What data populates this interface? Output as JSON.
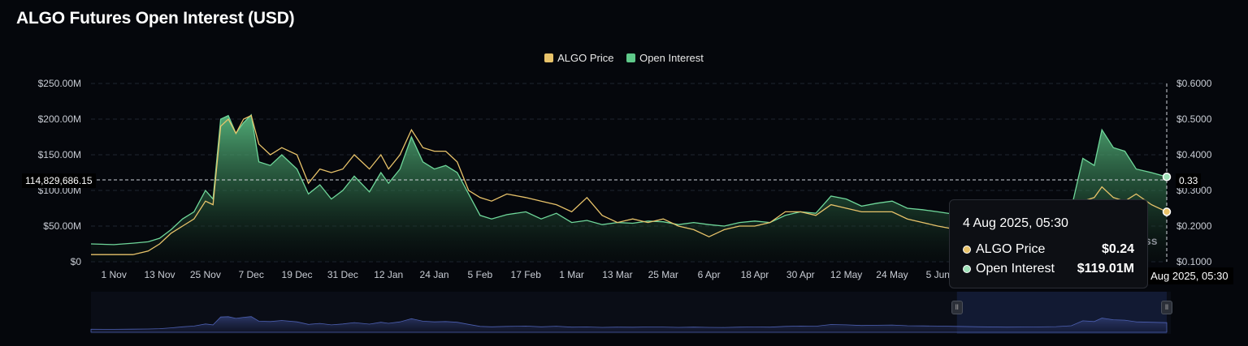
{
  "title": "ALGO Futures Open Interest (USD)",
  "legend": [
    {
      "name": "ALGO Price",
      "color": "#e8c36a"
    },
    {
      "name": "Open Interest",
      "color": "#5fc98a"
    }
  ],
  "tooltip": {
    "date": "4 Aug 2025, 05:30",
    "rows": [
      {
        "label": "ALGO Price",
        "value": "$0.24",
        "color": "#e8c36a"
      },
      {
        "label": "Open Interest",
        "value": "$119.01M",
        "color": "#9fe0b8"
      }
    ]
  },
  "crosshair": {
    "left_value": "114,829,686.15",
    "right_value": "0.33",
    "date_label": "4 Aug 2025, 05:30"
  },
  "watermark": "ss",
  "chart_data": {
    "type": "area",
    "title": "ALGO Futures Open Interest (USD)",
    "x_ticks": [
      "1 Nov",
      "13 Nov",
      "25 Nov",
      "7 Dec",
      "19 Dec",
      "31 Dec",
      "12 Jan",
      "24 Jan",
      "5 Feb",
      "17 Feb",
      "1 Mar",
      "13 Mar",
      "25 Mar",
      "6 Apr",
      "18 Apr",
      "30 Apr",
      "12 May",
      "24 May",
      "5 Jun"
    ],
    "y_left_ticks": [
      "$0",
      "$50.00M",
      "$100.00M",
      "$150.00M",
      "$200.00M",
      "$250.00M"
    ],
    "y_left_range": [
      0,
      250
    ],
    "y_left_unit": "USD millions",
    "y_right_ticks": [
      "$0.1000",
      "$0.2000",
      "$0.3000",
      "$0.4000",
      "$0.5000",
      "$0.6000"
    ],
    "y_right_range": [
      0.1,
      0.6
    ],
    "grid": true,
    "legend_position": "top-center",
    "x_start": "2024-10-26",
    "x_end": "2025-08-04",
    "series": [
      {
        "name": "Open Interest",
        "axis": "left",
        "color": "#5fc98a",
        "points": [
          [
            "2024-10-26",
            25
          ],
          [
            "2024-11-01",
            24
          ],
          [
            "2024-11-06",
            26
          ],
          [
            "2024-11-10",
            28
          ],
          [
            "2024-11-13",
            33
          ],
          [
            "2024-11-16",
            45
          ],
          [
            "2024-11-19",
            60
          ],
          [
            "2024-11-22",
            70
          ],
          [
            "2024-11-25",
            100
          ],
          [
            "2024-11-27",
            88
          ],
          [
            "2024-11-29",
            200
          ],
          [
            "2024-12-01",
            205
          ],
          [
            "2024-12-03",
            180
          ],
          [
            "2024-12-05",
            195
          ],
          [
            "2024-12-07",
            206
          ],
          [
            "2024-12-09",
            140
          ],
          [
            "2024-12-12",
            135
          ],
          [
            "2024-12-15",
            150
          ],
          [
            "2024-12-19",
            130
          ],
          [
            "2024-12-22",
            95
          ],
          [
            "2024-12-25",
            108
          ],
          [
            "2024-12-28",
            88
          ],
          [
            "2024-12-31",
            100
          ],
          [
            "2025-01-03",
            120
          ],
          [
            "2025-01-07",
            98
          ],
          [
            "2025-01-10",
            125
          ],
          [
            "2025-01-12",
            110
          ],
          [
            "2025-01-15",
            130
          ],
          [
            "2025-01-18",
            175
          ],
          [
            "2025-01-21",
            140
          ],
          [
            "2025-01-24",
            130
          ],
          [
            "2025-01-27",
            135
          ],
          [
            "2025-01-30",
            125
          ],
          [
            "2025-02-02",
            95
          ],
          [
            "2025-02-05",
            65
          ],
          [
            "2025-02-08",
            60
          ],
          [
            "2025-02-12",
            66
          ],
          [
            "2025-02-17",
            70
          ],
          [
            "2025-02-21",
            60
          ],
          [
            "2025-02-25",
            68
          ],
          [
            "2025-03-01",
            55
          ],
          [
            "2025-03-05",
            58
          ],
          [
            "2025-03-09",
            52
          ],
          [
            "2025-03-13",
            55
          ],
          [
            "2025-03-17",
            54
          ],
          [
            "2025-03-21",
            57
          ],
          [
            "2025-03-25",
            56
          ],
          [
            "2025-03-29",
            52
          ],
          [
            "2025-04-02",
            55
          ],
          [
            "2025-04-06",
            52
          ],
          [
            "2025-04-10",
            50
          ],
          [
            "2025-04-14",
            55
          ],
          [
            "2025-04-18",
            57
          ],
          [
            "2025-04-22",
            55
          ],
          [
            "2025-04-26",
            65
          ],
          [
            "2025-04-30",
            70
          ],
          [
            "2025-05-04",
            68
          ],
          [
            "2025-05-08",
            92
          ],
          [
            "2025-05-12",
            88
          ],
          [
            "2025-05-16",
            78
          ],
          [
            "2025-05-20",
            82
          ],
          [
            "2025-05-24",
            85
          ],
          [
            "2025-05-28",
            75
          ],
          [
            "2025-06-01",
            73
          ],
          [
            "2025-06-05",
            70
          ],
          [
            "2025-06-10",
            66
          ],
          [
            "2025-06-16",
            60
          ],
          [
            "2025-06-23",
            55
          ],
          [
            "2025-06-30",
            58
          ],
          [
            "2025-07-06",
            62
          ],
          [
            "2025-07-10",
            75
          ],
          [
            "2025-07-13",
            145
          ],
          [
            "2025-07-16",
            135
          ],
          [
            "2025-07-18",
            185
          ],
          [
            "2025-07-21",
            160
          ],
          [
            "2025-07-24",
            155
          ],
          [
            "2025-07-27",
            130
          ],
          [
            "2025-07-31",
            125
          ],
          [
            "2025-08-04",
            119.01
          ]
        ]
      },
      {
        "name": "ALGO Price",
        "axis": "right",
        "color": "#e8c36a",
        "points": [
          [
            "2024-10-26",
            0.12
          ],
          [
            "2024-11-01",
            0.12
          ],
          [
            "2024-11-06",
            0.12
          ],
          [
            "2024-11-10",
            0.13
          ],
          [
            "2024-11-13",
            0.15
          ],
          [
            "2024-11-16",
            0.18
          ],
          [
            "2024-11-19",
            0.2
          ],
          [
            "2024-11-22",
            0.22
          ],
          [
            "2024-11-25",
            0.27
          ],
          [
            "2024-11-27",
            0.26
          ],
          [
            "2024-11-29",
            0.48
          ],
          [
            "2024-12-01",
            0.5
          ],
          [
            "2024-12-03",
            0.46
          ],
          [
            "2024-12-05",
            0.5
          ],
          [
            "2024-12-07",
            0.51
          ],
          [
            "2024-12-09",
            0.43
          ],
          [
            "2024-12-12",
            0.4
          ],
          [
            "2024-12-15",
            0.42
          ],
          [
            "2024-12-19",
            0.4
          ],
          [
            "2024-12-22",
            0.32
          ],
          [
            "2024-12-25",
            0.36
          ],
          [
            "2024-12-28",
            0.35
          ],
          [
            "2024-12-31",
            0.36
          ],
          [
            "2025-01-03",
            0.4
          ],
          [
            "2025-01-07",
            0.36
          ],
          [
            "2025-01-10",
            0.4
          ],
          [
            "2025-01-12",
            0.36
          ],
          [
            "2025-01-15",
            0.4
          ],
          [
            "2025-01-18",
            0.47
          ],
          [
            "2025-01-21",
            0.42
          ],
          [
            "2025-01-24",
            0.41
          ],
          [
            "2025-01-27",
            0.41
          ],
          [
            "2025-01-30",
            0.38
          ],
          [
            "2025-02-02",
            0.3
          ],
          [
            "2025-02-05",
            0.28
          ],
          [
            "2025-02-08",
            0.27
          ],
          [
            "2025-02-12",
            0.29
          ],
          [
            "2025-02-17",
            0.28
          ],
          [
            "2025-02-21",
            0.27
          ],
          [
            "2025-02-25",
            0.26
          ],
          [
            "2025-03-01",
            0.24
          ],
          [
            "2025-03-05",
            0.28
          ],
          [
            "2025-03-09",
            0.23
          ],
          [
            "2025-03-13",
            0.21
          ],
          [
            "2025-03-17",
            0.22
          ],
          [
            "2025-03-21",
            0.21
          ],
          [
            "2025-03-25",
            0.22
          ],
          [
            "2025-03-29",
            0.2
          ],
          [
            "2025-04-02",
            0.19
          ],
          [
            "2025-04-06",
            0.17
          ],
          [
            "2025-04-10",
            0.19
          ],
          [
            "2025-04-14",
            0.2
          ],
          [
            "2025-04-18",
            0.2
          ],
          [
            "2025-04-22",
            0.21
          ],
          [
            "2025-04-26",
            0.24
          ],
          [
            "2025-04-30",
            0.24
          ],
          [
            "2025-05-04",
            0.23
          ],
          [
            "2025-05-08",
            0.26
          ],
          [
            "2025-05-12",
            0.25
          ],
          [
            "2025-05-16",
            0.24
          ],
          [
            "2025-05-20",
            0.24
          ],
          [
            "2025-05-24",
            0.24
          ],
          [
            "2025-05-28",
            0.22
          ],
          [
            "2025-06-01",
            0.21
          ],
          [
            "2025-06-05",
            0.2
          ],
          [
            "2025-06-10",
            0.19
          ],
          [
            "2025-06-16",
            0.18
          ],
          [
            "2025-06-23",
            0.17
          ],
          [
            "2025-06-30",
            0.18
          ],
          [
            "2025-07-06",
            0.19
          ],
          [
            "2025-07-10",
            0.22
          ],
          [
            "2025-07-13",
            0.27
          ],
          [
            "2025-07-16",
            0.28
          ],
          [
            "2025-07-18",
            0.31
          ],
          [
            "2025-07-21",
            0.28
          ],
          [
            "2025-07-24",
            0.27
          ],
          [
            "2025-07-27",
            0.29
          ],
          [
            "2025-07-31",
            0.26
          ],
          [
            "2025-08-04",
            0.24
          ]
        ]
      }
    ],
    "navigator": {
      "series": "Open Interest",
      "selected_range": [
        "2025-06-10",
        "2025-08-04"
      ]
    }
  }
}
